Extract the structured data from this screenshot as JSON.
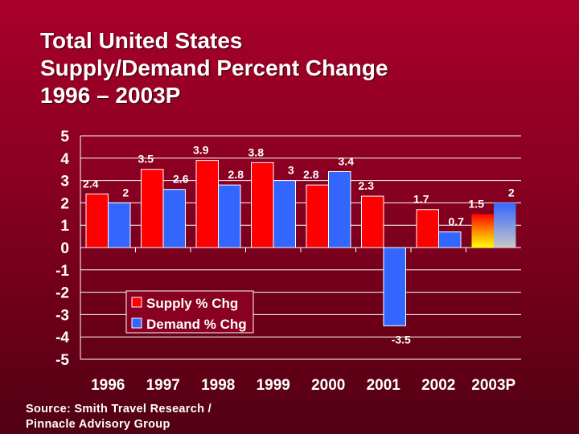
{
  "title_lines": [
    "Total United States",
    "Supply/Demand Percent Change",
    "1996 – 2003P"
  ],
  "source_lines": [
    "Source: Smith Travel Research /",
    "Pinnacle Advisory Group"
  ],
  "chart_data": {
    "type": "bar",
    "categories": [
      "1996",
      "1997",
      "1998",
      "1999",
      "2000",
      "2001",
      "2002",
      "2003P"
    ],
    "series": [
      {
        "name": "Supply % Chg",
        "values": [
          2.4,
          3.5,
          3.9,
          3.8,
          2.8,
          2.3,
          1.7,
          1.5
        ],
        "color": "#ff0000"
      },
      {
        "name": "Demand % Chg",
        "values": [
          2,
          2.6,
          2.8,
          3,
          3.4,
          -3.5,
          0.7,
          2
        ],
        "color": "#3366ff"
      }
    ],
    "data_labels": [
      [
        "2.4",
        "3.5",
        "3.9",
        "3.8",
        "2.8",
        "2.3",
        "1.7",
        "1.5"
      ],
      [
        "2",
        "2.6",
        "2.8",
        "3",
        "3.4",
        "-3.5",
        "0.7",
        "2"
      ]
    ],
    "ylim": [
      -5,
      5
    ],
    "yticks": [
      "5",
      "4",
      "3",
      "2",
      "1",
      "0",
      "-1",
      "-2",
      "-3",
      "-4",
      "-5"
    ],
    "grid": true,
    "legend_position": "bottom-left",
    "projected_category_style": "gradient",
    "xlabel": "",
    "ylabel": "",
    "title": ""
  }
}
